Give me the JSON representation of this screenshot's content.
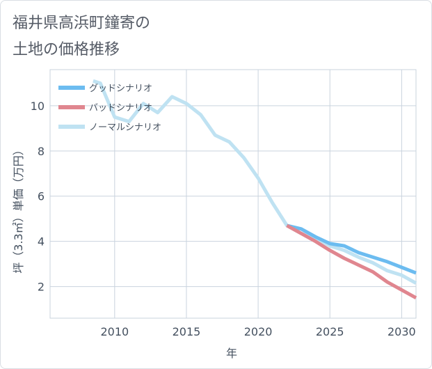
{
  "chart_data": {
    "type": "line",
    "title": "福井県高浜町鐘寄の\n土地の価格推移",
    "xlabel": "年",
    "ylabel": "坪（3.3㎡）単価（万円）",
    "xlim": [
      2005.5,
      2031
    ],
    "ylim": [
      0.6,
      11.6
    ],
    "xticks": [
      2010,
      2015,
      2020,
      2025,
      2030
    ],
    "yticks": [
      2,
      4,
      6,
      8,
      10
    ],
    "grid": true,
    "legend_position": "top-left",
    "series": [
      {
        "name": "グッドシナリオ",
        "color": "#6cbcf0",
        "x": [
          2022,
          2023,
          2024,
          2025,
          2026,
          2027,
          2028,
          2029,
          2030,
          2031
        ],
        "y": [
          4.7,
          4.55,
          4.2,
          3.9,
          3.8,
          3.5,
          3.3,
          3.1,
          2.85,
          2.6
        ]
      },
      {
        "name": "バッドシナリオ",
        "color": "#e0868f",
        "x": [
          2022,
          2023,
          2024,
          2025,
          2026,
          2027,
          2028,
          2029,
          2030,
          2031
        ],
        "y": [
          4.7,
          4.35,
          4.0,
          3.6,
          3.25,
          2.95,
          2.65,
          2.2,
          1.85,
          1.5
        ]
      },
      {
        "name": "ノーマルシナリオ",
        "color": "#bfe2f2",
        "x": [
          2008.5,
          2009,
          2010,
          2011,
          2012,
          2013,
          2014,
          2015,
          2016,
          2017,
          2018,
          2019,
          2020,
          2021,
          2022,
          2023,
          2024,
          2025,
          2026,
          2027,
          2028,
          2029,
          2030,
          2031
        ],
        "y": [
          11.1,
          11.0,
          9.5,
          9.3,
          10.1,
          9.7,
          10.4,
          10.1,
          9.6,
          8.7,
          8.4,
          7.7,
          6.8,
          5.7,
          4.7,
          4.35,
          4.15,
          3.8,
          3.6,
          3.3,
          3.05,
          2.7,
          2.5,
          2.15
        ]
      }
    ]
  }
}
